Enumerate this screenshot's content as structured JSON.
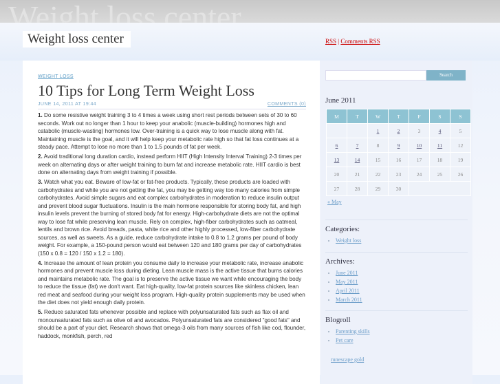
{
  "header": {
    "title": "Weight loss center",
    "rss": "RSS",
    "separator": "|",
    "comments_rss": "Comments RSS"
  },
  "post": {
    "category": "WEIGHT LOSS",
    "title": "10 Tips for Long Term Weight Loss",
    "date": "JUNE 14, 2011 AT 19:44",
    "comments": "COMMENTS (0)",
    "paragraphs": [
      {
        "num": "1.",
        "text": "Do some resistive weight training 3 to 4 times a week using short rest periods between sets of 30 to 60 seconds. Work out no longer than 1 hour to keep your anabolic (muscle-building) hormones high and catabolic (muscle-wasting) hormones low. Over-training is a quick way to lose muscle along with fat. Maintaining muscle is the goal, and it will help keep your metabolic rate high so that fat loss continues at a steady pace. Attempt to lose no more than 1 to 1.5 pounds of fat per week."
      },
      {
        "num": "2.",
        "text": "Avoid traditional long duration cardio, instead perform HIIT (High Intensity Interval Training) 2-3 times per week on alternating days or after weight training to burn fat and increase metabolic rate. HIIT cardio is best done on alternating days from weight training if possible."
      },
      {
        "num": "3.",
        "text": "Watch what you eat. Beware of low-fat or fat-free products. Typically, these products are loaded with carbohydrates and while you are not getting the fat, you may be getting way too many calories from simple carbohydrates. Avoid simple sugars and eat complex carbohydrates in moderation to reduce insulin output and prevent blood sugar fluctuations. Insulin is the main hormone responsible for storing body fat, and high insulin levels prevent the burning of stored body fat for energy. High-carbohydrate diets are not the optimal way to lose fat while preserving lean muscle. Rely on complex, high-fiber carbohydrates such as oatmeal, lentils and brown rice. Avoid breads, pasta, white rice and other highly processed, low-fiber carbohydrate sources, as well as sweets. As a guide, reduce carbohydrate intake to 0.8 to 1.2 grams per pound of body weight. For example, a 150-pound person would eat between 120 and 180 grams per day of carbohydrates (150 x 0.8 = 120 / 150 x 1.2 = 180)."
      },
      {
        "num": "4.",
        "text": "Increase the amount of lean protein you consume daily to increase your metabolic rate, increase anabolic hormones and prevent muscle loss during dieting. Lean muscle mass is the active tissue that burns calories and maintains metabolic rate. The goal is to preserve the active tissue we want while encouraging the body to reduce the tissue (fat) we don't want. Eat high-quality, low-fat protein sources like skinless chicken, lean red meat and seafood during your weight loss program. High-quality protein supplements may be used when the diet does not yield enough daily protein."
      },
      {
        "num": "5.",
        "text": "Reduce saturated fats whenever possible and replace with polyunsaturated fats such as flax oil and monounsaturated fats such as olive oil and avocados. Polyunsaturated fats are considered \"good fats\" and should be a part of your diet. Research shows that omega-3 oils from many sources of fish like cod, flounder, haddock, monkfish, perch, red"
      }
    ]
  },
  "sidebar": {
    "search_button": "Search",
    "calendar": {
      "caption": "June 2011",
      "weekdays": [
        "M",
        "T",
        "W",
        "T",
        "F",
        "S",
        "S"
      ],
      "weeks": [
        [
          {
            "day": 1,
            "link": true
          },
          {
            "day": 2,
            "link": true
          },
          {
            "day": 3,
            "link": false
          },
          {
            "day": 4,
            "link": true
          },
          {
            "day": 5,
            "link": false
          }
        ],
        [
          {
            "day": 6,
            "link": true
          },
          {
            "day": 7,
            "link": true
          },
          {
            "day": 8,
            "link": false
          },
          {
            "day": 9,
            "link": true
          },
          {
            "day": 10,
            "link": true
          },
          {
            "day": 11,
            "link": true
          },
          {
            "day": 12,
            "link": false
          }
        ],
        [
          {
            "day": 13,
            "link": true
          },
          {
            "day": 14,
            "link": true
          },
          {
            "day": 15,
            "link": false
          },
          {
            "day": 16,
            "link": false
          },
          {
            "day": 17,
            "link": false
          },
          {
            "day": 18,
            "link": false
          },
          {
            "day": 19,
            "link": false
          }
        ],
        [
          {
            "day": 20,
            "link": false
          },
          {
            "day": 21,
            "link": false
          },
          {
            "day": 22,
            "link": false
          },
          {
            "day": 23,
            "link": false
          },
          {
            "day": 24,
            "link": false
          },
          {
            "day": 25,
            "link": false
          },
          {
            "day": 26,
            "link": false
          }
        ],
        [
          {
            "day": 27,
            "link": false
          },
          {
            "day": 28,
            "link": false
          },
          {
            "day": 29,
            "link": false
          },
          {
            "day": 30,
            "link": false
          }
        ]
      ],
      "prev": "« May"
    },
    "sections": [
      {
        "heading": "Categories:",
        "items": [
          "Weight loss"
        ]
      },
      {
        "heading": "Archives:",
        "items": [
          "June 2011",
          "May 2011",
          "April 2011",
          "March 2011"
        ]
      },
      {
        "heading": "Blogroll",
        "items": [
          "Parenting skills",
          "Pet care"
        ]
      }
    ],
    "footer_link": "runescape gold"
  }
}
